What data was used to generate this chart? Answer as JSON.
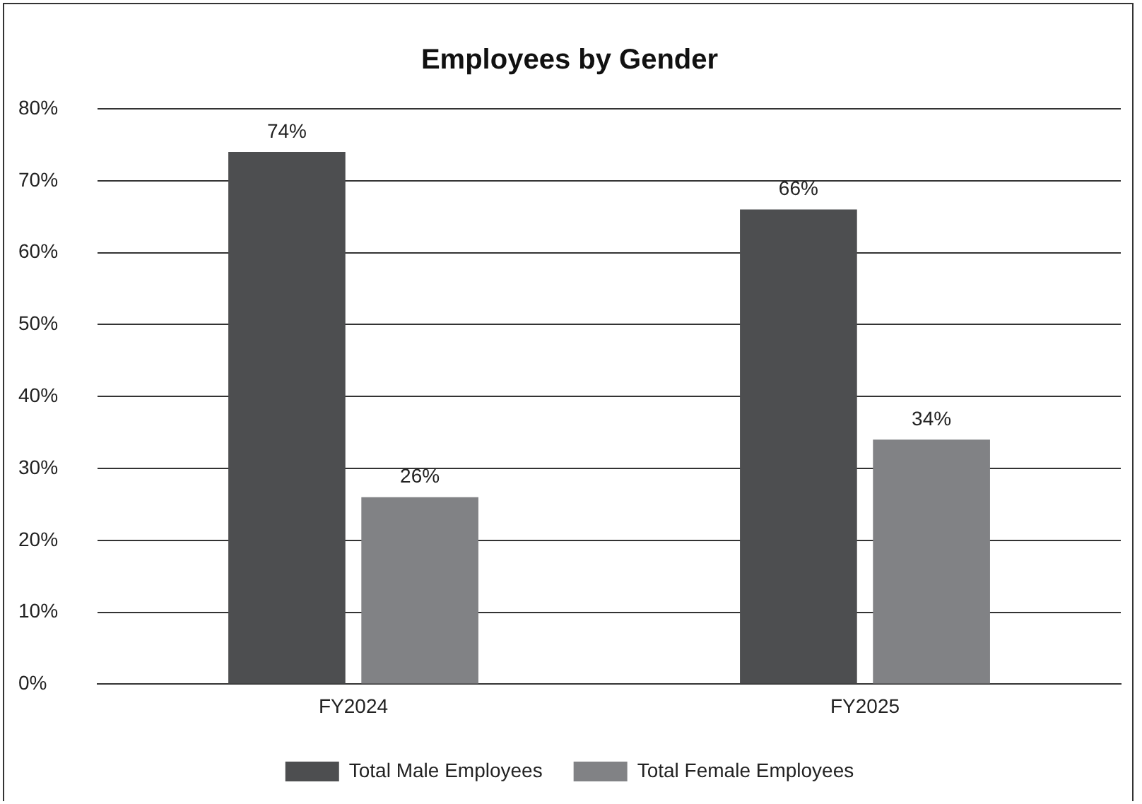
{
  "chart_data": {
    "type": "bar",
    "title": "Employees by Gender",
    "categories": [
      "FY2024",
      "FY2025"
    ],
    "series": [
      {
        "name": "Total Male Employees",
        "color": "#4d4e50",
        "values": [
          74,
          66
        ],
        "value_labels": [
          "74%",
          "66%"
        ]
      },
      {
        "name": "Total Female Employees",
        "color": "#818285",
        "values": [
          26,
          34
        ],
        "value_labels": [
          "26%",
          "34%"
        ]
      }
    ],
    "ylim": [
      0,
      80
    ],
    "yticks": [
      {
        "value": 0,
        "label": "0%"
      },
      {
        "value": 10,
        "label": "10%"
      },
      {
        "value": 20,
        "label": "20%"
      },
      {
        "value": 30,
        "label": "30%"
      },
      {
        "value": 40,
        "label": "40%"
      },
      {
        "value": 50,
        "label": "50%"
      },
      {
        "value": 60,
        "label": "60%"
      },
      {
        "value": 70,
        "label": "70%"
      },
      {
        "value": 80,
        "label": "80%"
      }
    ],
    "grid": "y",
    "legend": "bottom"
  }
}
